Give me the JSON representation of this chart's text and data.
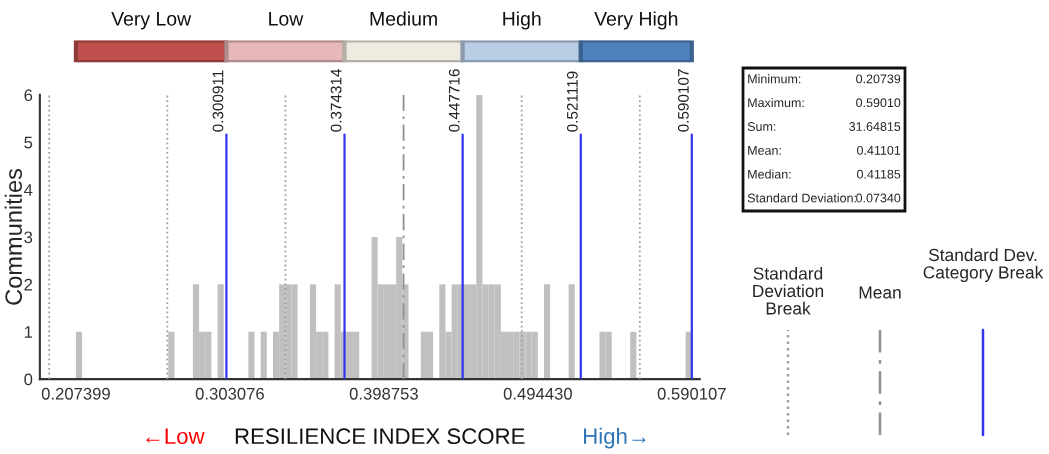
{
  "chart_data": {
    "type": "histogram",
    "xlabel": "RESILIENCE INDEX SCORE",
    "ylabel": "Communities",
    "color": "#c0c0c0",
    "bins": [
      0.2074,
      0.21123,
      0.21505,
      0.21888,
      0.22271,
      0.22653,
      0.23036,
      0.23419,
      0.23801,
      0.24184,
      0.24567,
      0.2495,
      0.25332,
      0.25715,
      0.26098,
      0.2648,
      0.26863,
      0.27246,
      0.27629,
      0.28011,
      0.28394,
      0.28777,
      0.29159,
      0.29542,
      0.29925,
      0.30307,
      0.3069,
      0.31073,
      0.31456,
      0.31838,
      0.32221,
      0.32604,
      0.32986,
      0.33369,
      0.33752,
      0.34135,
      0.34517,
      0.349,
      0.35283,
      0.35665,
      0.36048,
      0.36431,
      0.36813,
      0.37196,
      0.37579,
      0.37962,
      0.38344,
      0.38727,
      0.3911,
      0.39492,
      0.39875,
      0.40258,
      0.4064,
      0.41023,
      0.41406,
      0.41789,
      0.42171,
      0.42554,
      0.42937,
      0.43319,
      0.43702,
      0.44085,
      0.44468,
      0.4485,
      0.45233,
      0.45616,
      0.45998,
      0.46381,
      0.46764,
      0.47146,
      0.47529,
      0.47912,
      0.48295,
      0.48677,
      0.4906,
      0.49443,
      0.49825,
      0.50208,
      0.50591,
      0.50973,
      0.51356,
      0.51739,
      0.52122,
      0.52504,
      0.52887,
      0.5327,
      0.53652,
      0.54035,
      0.54418,
      0.548,
      0.55183,
      0.55566,
      0.55949,
      0.56331,
      0.56714,
      0.57097,
      0.57479,
      0.57862,
      0.58245,
      0.58628,
      0.5901
    ],
    "values": [
      1,
      0,
      0,
      0,
      0,
      0,
      0,
      0,
      0,
      0,
      0,
      0,
      0,
      0,
      0,
      1,
      0,
      0,
      0,
      2,
      1,
      1,
      0,
      2,
      0,
      0,
      0,
      0,
      1,
      0,
      1,
      0,
      1,
      2,
      2,
      2,
      0,
      0,
      2,
      1,
      1,
      0,
      2,
      1,
      1,
      1,
      0,
      0,
      3,
      2,
      2,
      2,
      3,
      2,
      0,
      0,
      1,
      1,
      0,
      2,
      1,
      2,
      2,
      2,
      2,
      6,
      2,
      2,
      2,
      1,
      1,
      1,
      1,
      1,
      1,
      0,
      2,
      0,
      0,
      0,
      2,
      0,
      0,
      0,
      0,
      1,
      1,
      0,
      0,
      0,
      1,
      0,
      0,
      0,
      0,
      0,
      0,
      0,
      0,
      1
    ],
    "xlim": [
      0.185,
      0.595
    ],
    "xticks": [
      0.207399,
      0.303076,
      0.398753,
      {
        "value": 0.49443,
        "label": "0.494430"
      },
      0.590107
    ],
    "ylim": [
      0,
      6
    ],
    "yticks": [
      0,
      1,
      2,
      3,
      4,
      5,
      6
    ],
    "ref_lines": [
      {
        "axis": "x",
        "value": 0.1908,
        "color": "#a0a0a0",
        "line_style": "dotted"
      },
      {
        "axis": "x",
        "value": 0.2642,
        "color": "#a0a0a0",
        "line_style": "dotted"
      },
      {
        "axis": "x",
        "value": 0.3376,
        "color": "#a0a0a0",
        "line_style": "dotted"
      },
      {
        "axis": "x",
        "value": 0.4844,
        "color": "#a0a0a0",
        "line_style": "dotted"
      },
      {
        "axis": "x",
        "value": 0.5578,
        "color": "#a0a0a0",
        "line_style": "dotted"
      },
      {
        "axis": "x",
        "value": 0.411,
        "color": "#909090",
        "line_style": "dashed"
      },
      {
        "axis": "x",
        "value": 0.300911,
        "label": "0.300911",
        "color": "#3333ee",
        "line_style": "solid"
      },
      {
        "axis": "x",
        "value": 0.374314,
        "label": "0.374314",
        "color": "#3333ee",
        "line_style": "solid"
      },
      {
        "axis": "x",
        "value": 0.447716,
        "label": "0.447716",
        "color": "#3333ee",
        "line_style": "solid"
      },
      {
        "axis": "x",
        "value": 0.521119,
        "label": "0.521119",
        "color": "#3333ee",
        "line_style": "solid"
      },
      {
        "axis": "x",
        "value": 0.590107,
        "label": "0.590107",
        "color": "#3333ee",
        "line_style": "solid"
      }
    ],
    "annotations": [
      "Minimum: 0.20739",
      "Maximum: 0.59010",
      "Sum: 31.64815",
      "Mean: 0.41101",
      "Median: 0.41185",
      "Standard Deviation: 0.07340",
      "Very Low",
      "Low",
      "Medium",
      "High",
      "Very High",
      "←Low",
      "High→",
      "Standard\nDeviation\nBreak",
      "Mean",
      "Standard Dev.\nCategory Break"
    ]
  }
}
